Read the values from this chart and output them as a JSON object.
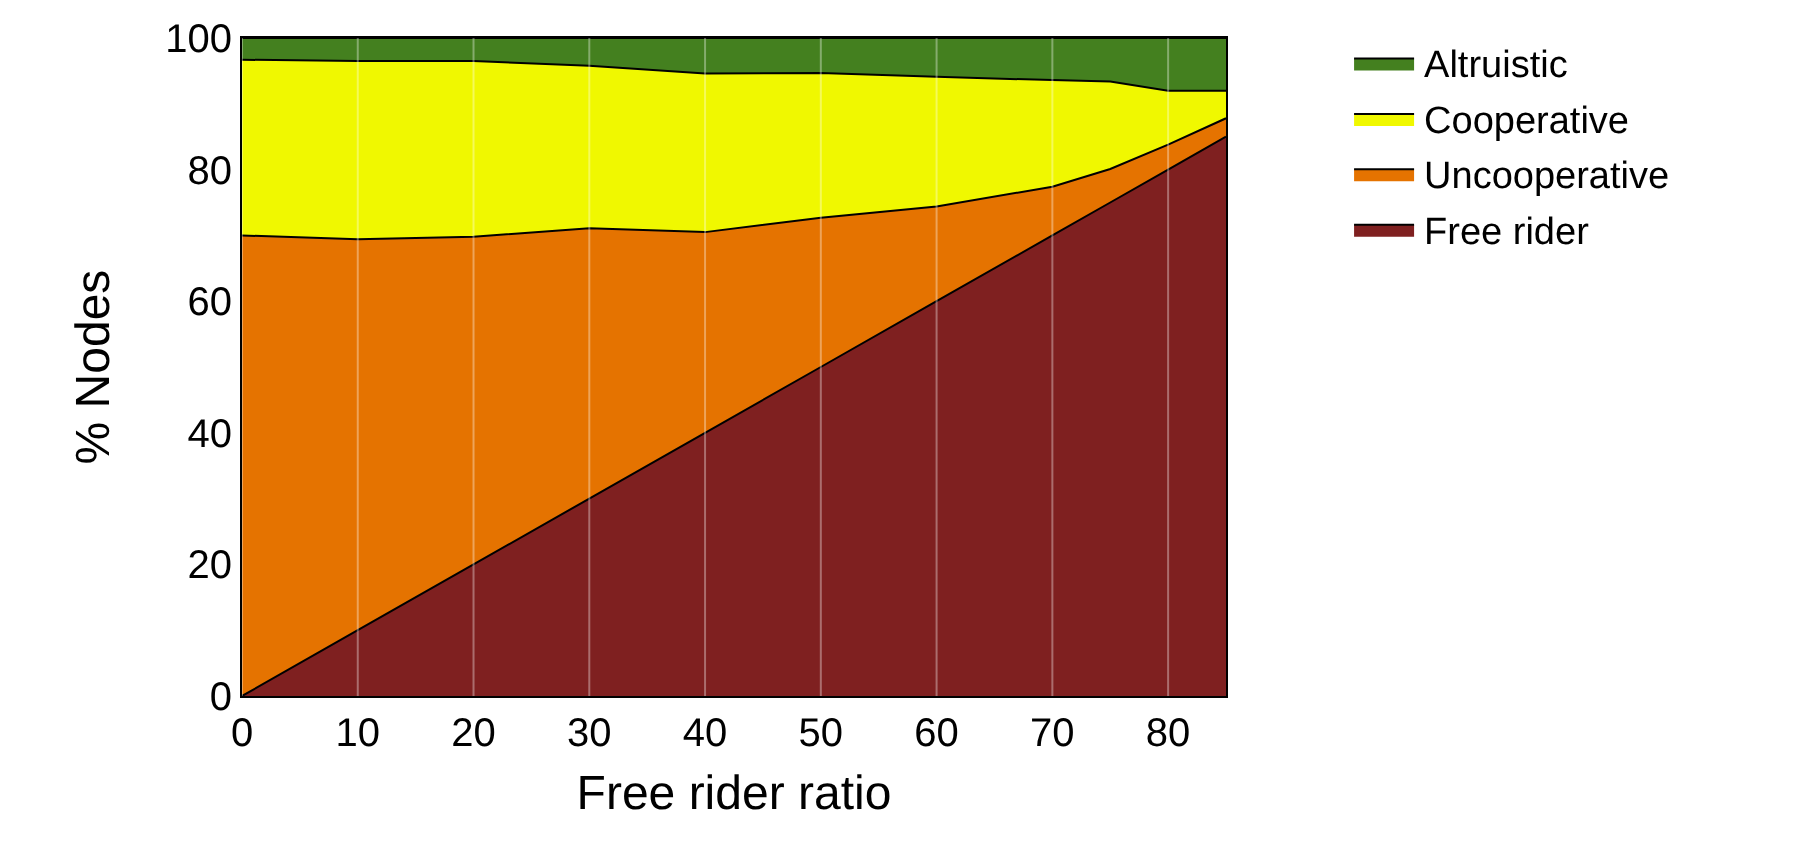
{
  "chart_data": {
    "type": "area",
    "stacked": true,
    "xlabel": "Free rider ratio",
    "ylabel": "% Nodes",
    "x": [
      0,
      10,
      20,
      30,
      40,
      50,
      60,
      70,
      75,
      80,
      85
    ],
    "series": [
      {
        "name": "Free rider",
        "color": "#7f2020",
        "values": [
          0,
          10,
          20,
          30,
          40,
          50,
          60,
          70,
          75,
          80,
          85
        ]
      },
      {
        "name": "Uncooperative",
        "color": "#e57300",
        "values": [
          70,
          59.4,
          49.8,
          41.1,
          30.5,
          22.7,
          14.4,
          7.4,
          5.1,
          3.8,
          2.8
        ]
      },
      {
        "name": "Cooperative",
        "color": "#f0f800",
        "values": [
          26.7,
          27.1,
          26.7,
          24.7,
          24.1,
          22,
          19.7,
          16.2,
          13.3,
          8.2,
          4.2
        ]
      },
      {
        "name": "Altruistic",
        "color": "#44801f",
        "values": [
          3.3,
          3.5,
          3.5,
          4.2,
          5.4,
          5.3,
          5.9,
          6.4,
          6.6,
          8,
          8
        ]
      }
    ],
    "xlim": [
      0,
      85
    ],
    "xticks": [
      0,
      10,
      20,
      30,
      40,
      50,
      60,
      70,
      80
    ],
    "ylim": [
      0,
      100
    ],
    "yticks": [
      0,
      20,
      40,
      60,
      80,
      100
    ],
    "grid": "x",
    "legend": "top right"
  }
}
